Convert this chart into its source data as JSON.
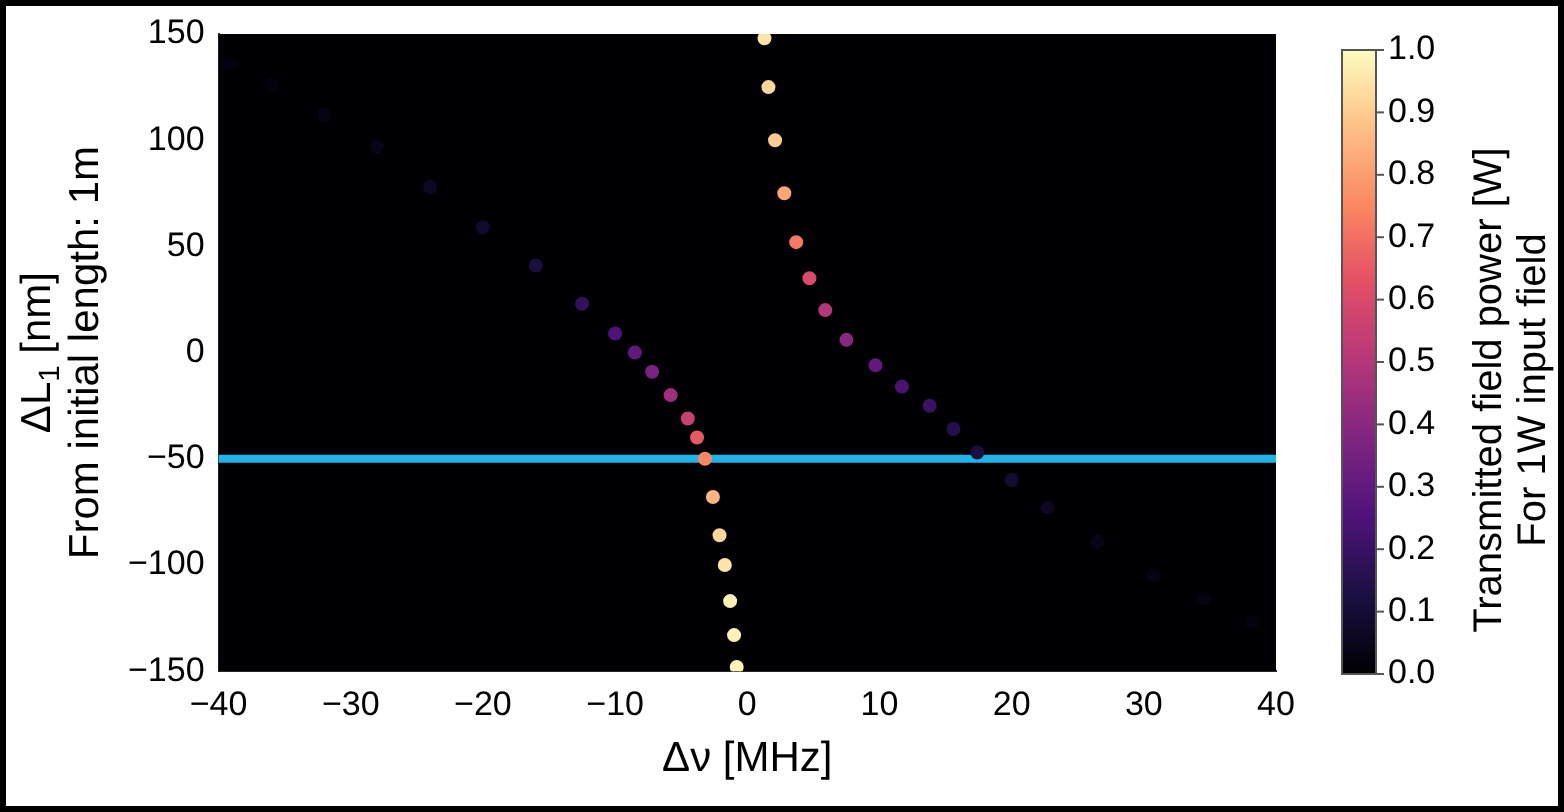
{
  "chart_data": {
    "type": "scatter",
    "xlabel": "Δν [MHz]",
    "ylabel": "ΔL$_{1}$ [nm]\nFrom initial length: 1m",
    "clabel": "Transmitted field power [W]\nFor 1W input field",
    "marker": "circle",
    "legend": false,
    "grid": false,
    "xlim": [
      -40,
      40
    ],
    "xticks": [
      -40,
      -30,
      -20,
      -10,
      0,
      10,
      20,
      30,
      40
    ],
    "ylim": [
      -150,
      150
    ],
    "yticks": [
      -150,
      -100,
      -50,
      0,
      50,
      100,
      150
    ],
    "clim": [
      0,
      1
    ],
    "cticks": [
      {
        "value": 0,
        "label": "0.0"
      },
      {
        "value": 0.1,
        "label": "0.1"
      },
      {
        "value": 0.2,
        "label": "0.2"
      },
      {
        "value": 0.3,
        "label": "0.3"
      },
      {
        "value": 0.4,
        "label": "0.4"
      },
      {
        "value": 0.5,
        "label": "0.5"
      },
      {
        "value": 0.6,
        "label": "0.6"
      },
      {
        "value": 0.7,
        "label": "0.7"
      },
      {
        "value": 0.8,
        "label": "0.8"
      },
      {
        "value": 0.9,
        "label": "0.9"
      },
      {
        "value": 1,
        "label": "1.0"
      }
    ],
    "series": [
      {
        "x": [
          -39.2,
          -36,
          -32,
          -28,
          -24,
          -20,
          -16,
          -12.5,
          -10,
          -8.5,
          -7.2,
          -5.8,
          -4.5,
          -3.8,
          -3.2,
          -2.6,
          -2.1,
          -1.7,
          -1.3,
          -1,
          -0.8
        ],
        "values": [
          136,
          126,
          112,
          97,
          78,
          59,
          41,
          23,
          9,
          0,
          -9,
          -20,
          -31,
          -40,
          -50,
          -68,
          -86,
          -100,
          -117,
          -133,
          -148
        ],
        "cvalues": [
          0.02,
          0.02,
          0.03,
          0.04,
          0.06,
          0.08,
          0.12,
          0.18,
          0.25,
          0.3,
          0.36,
          0.45,
          0.55,
          0.65,
          0.75,
          0.85,
          0.92,
          0.95,
          0.97,
          0.98,
          0.98
        ],
        "colors": [
          "#04020e",
          "#04020e",
          "#060413",
          "#090518",
          "#0d0722",
          "#110a2b",
          "#1a0f3f",
          "#31115b",
          "#4f127b",
          "#62197d",
          "#792280",
          "#9f2f7d",
          "#c74072",
          "#e95963",
          "#fb8761",
          "#fdb47e",
          "#fdd69a",
          "#fde4a8",
          "#fdeeb1",
          "#fcf3b6",
          "#fcf3b6"
        ]
      },
      {
        "x": [
          1.3,
          1.6,
          2.1,
          2.8,
          3.7,
          4.7,
          5.9,
          7.5,
          9.7,
          11.7,
          13.8,
          15.6,
          17.4,
          20,
          22.7,
          26.5,
          30.7,
          34.5,
          38.2
        ],
        "values": [
          148,
          125,
          100,
          75,
          52,
          35,
          20,
          6,
          -6,
          -16,
          -25,
          -36,
          -47,
          -60,
          -73,
          -89,
          -105,
          -116,
          -127
        ],
        "cvalues": [
          0.95,
          0.92,
          0.9,
          0.82,
          0.72,
          0.6,
          0.5,
          0.4,
          0.3,
          0.24,
          0.2,
          0.15,
          0.12,
          0.09,
          0.06,
          0.04,
          0.03,
          0.025,
          0.02
        ],
        "colors": [
          "#fde4a8",
          "#fdd69a",
          "#fecc90",
          "#fda775",
          "#f67962",
          "#da4a69",
          "#b5367a",
          "#8a2880",
          "#62197d",
          "#4b1276",
          "#3a1164",
          "#25104d",
          "#1a0f3f",
          "#130b30",
          "#0d0722",
          "#090518",
          "#060413",
          "#050310",
          "#04020e"
        ]
      }
    ],
    "ref_lines": [
      {
        "axis": "y",
        "value": -50,
        "color": "#1fb4e8"
      }
    ]
  }
}
